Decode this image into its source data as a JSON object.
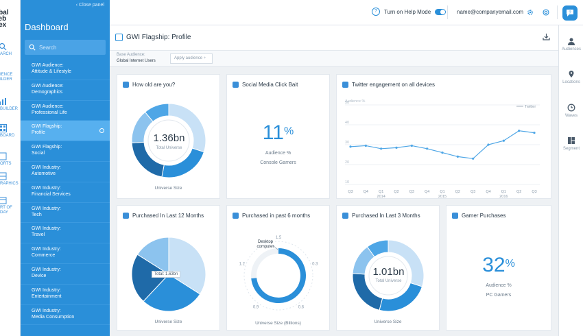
{
  "left_rail": {
    "logo": "obal\nveb\ndex",
    "items": [
      {
        "label": "ARCH",
        "icon": "search-icon"
      },
      {
        "label": "IENCE\nILDER",
        "icon": "audience-builder-icon"
      },
      {
        "label": "BUILDER",
        "icon": "chart-builder-icon"
      },
      {
        "label": "BOARD",
        "icon": "dashboard-icon"
      },
      {
        "label": "ORTS",
        "icon": "reports-icon"
      },
      {
        "label": "RAPHICS",
        "icon": "infographics-icon"
      },
      {
        "label": "RT OF\nDAY",
        "icon": "chart-of-day-icon"
      }
    ]
  },
  "sidebar": {
    "close_label": "Close panel",
    "title": "Dashboard",
    "search_placeholder": "Search",
    "items": [
      {
        "label": "GWI Audience:\nAttitude & Lifestyle"
      },
      {
        "label": "GWI Audience:\nDemographics"
      },
      {
        "label": "GWI Audience:\nProfessional Life"
      },
      {
        "label": "GWI Flagship:\nProfile",
        "active": true
      },
      {
        "label": "GWI Flagship:\nSocial"
      },
      {
        "label": "GWI Industry:\nAutomotive"
      },
      {
        "label": "GWI Industry:\nFinancial Services"
      },
      {
        "label": "GWI Industry:\nTech"
      },
      {
        "label": "GWI Industry:\nTravel"
      },
      {
        "label": "GWI Industry:\nCommerce"
      },
      {
        "label": "GWI Industry:\nDevice"
      },
      {
        "label": "GWI Industry:\nEntertainment"
      },
      {
        "label": "GWI Industry:\nMedia Consumption"
      }
    ]
  },
  "topbar": {
    "help_label": "Turn on Help Mode",
    "help_mode_on": true,
    "email": "name@companyemail.com",
    "icons": [
      "question-icon",
      "gear-icon",
      "globe-icon",
      "chat-icon"
    ]
  },
  "right_rail": {
    "items": [
      {
        "label": "Audiences",
        "icon": "person-icon"
      },
      {
        "label": "Locations",
        "icon": "pin-icon"
      },
      {
        "label": "Waves",
        "icon": "clock-icon"
      },
      {
        "label": "Segment",
        "icon": "segment-icon"
      }
    ]
  },
  "page": {
    "title": "GWI Flagship: Profile",
    "base_audience_label": "Base Audience:",
    "base_audience_value": "Global Internet Users",
    "apply_label": "Apply audience"
  },
  "cards": {
    "age": {
      "title": "How old are you?",
      "center_value": "1.36bn",
      "center_label": "Total Universe",
      "caption": "Universe Size"
    },
    "clickbait": {
      "title": "Social Media Click Bait",
      "value": "11",
      "unit": "%",
      "line1": "Audience %",
      "line2": "Console Gamers"
    },
    "twitter": {
      "title": "Twitter engagement on all devices",
      "y_label": "Audience %",
      "legend": "Twitter"
    },
    "p12": {
      "title": "Purchased In Last 12 Months",
      "tooltip": "Total: 1.63bn",
      "caption": "Universe Size"
    },
    "p6": {
      "title": "Purchased in past 6 months",
      "caption": "Universe Size (Billions)",
      "callout": "Desktop\ncomputer",
      "ticks": [
        "0.3",
        "0.6",
        "0.9",
        "1.2",
        "1.5"
      ]
    },
    "p3": {
      "title": "Purchased In Last 3 Months",
      "center_value": "1.01bn",
      "center_label": "Total Universe",
      "caption": "Universe Size"
    },
    "gamer": {
      "title": "Gamer Purchases",
      "value": "32",
      "unit": "%",
      "line1": "Audience %",
      "line2": "PC Gamers"
    }
  },
  "chart_data": [
    {
      "type": "pie",
      "title": "How old are you?",
      "style": "donut",
      "values": [
        30,
        23,
        21,
        15,
        11
      ],
      "colors": [
        "#c8e1f6",
        "#2a8fd9",
        "#1f6aa8",
        "#8cc3ee",
        "#4ea6e6"
      ]
    },
    {
      "type": "line",
      "title": "Twitter engagement on all devices",
      "ylabel": "Audience %",
      "ylim": [
        10,
        50
      ],
      "yticks": [
        10,
        20,
        30,
        40,
        50
      ],
      "x": [
        "Q3",
        "Q4",
        "Q1",
        "Q2",
        "Q3",
        "Q4",
        "Q1",
        "Q2",
        "Q3",
        "Q4",
        "Q1",
        "Q2",
        "Q3"
      ],
      "x_groups": [
        {
          "label": "2014",
          "at": 2
        },
        {
          "label": "2015",
          "at": 6
        },
        {
          "label": "2016",
          "at": 10
        }
      ],
      "series": [
        {
          "name": "Twitter",
          "values": [
            29,
            29.5,
            28,
            28.5,
            29.5,
            28,
            26,
            24,
            23,
            30,
            32,
            37,
            36
          ]
        }
      ],
      "grid": true,
      "legend": "top-right"
    },
    {
      "type": "pie",
      "title": "Purchased In Last 12 Months",
      "values": [
        34,
        28,
        22,
        16
      ],
      "colors": [
        "#c8e1f6",
        "#2a8fd9",
        "#1f6aa8",
        "#8cc3ee"
      ]
    },
    {
      "type": "radial",
      "title": "Purchased in past 6 months",
      "values": [
        {
          "label": "Desktop computer",
          "value": 1.1
        }
      ],
      "max": 1.5
    },
    {
      "type": "pie",
      "title": "Purchased In Last 3 Months",
      "style": "donut",
      "values": [
        30,
        24,
        22,
        14,
        10
      ],
      "colors": [
        "#c8e1f6",
        "#2a8fd9",
        "#1f6aa8",
        "#8cc3ee",
        "#4ea6e6"
      ]
    }
  ]
}
